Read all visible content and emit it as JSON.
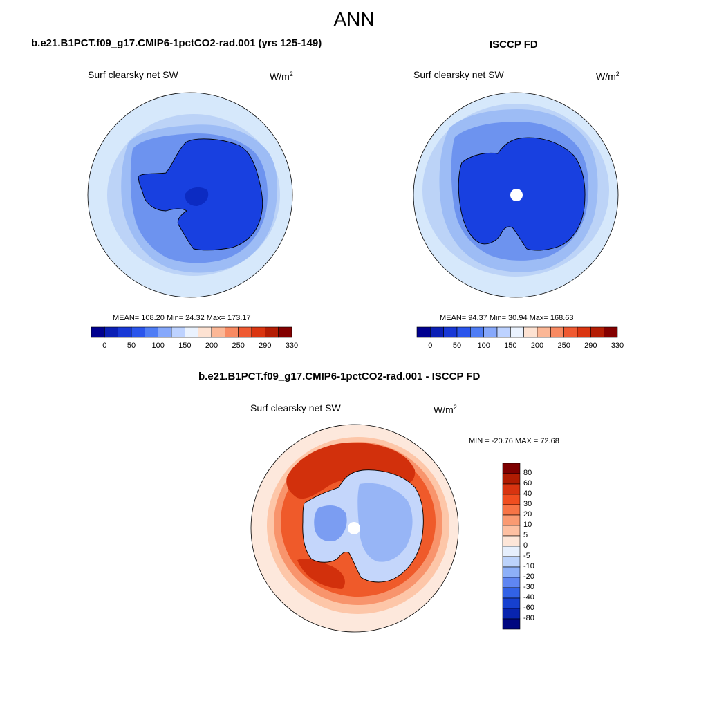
{
  "title": "ANN",
  "panels": [
    {
      "id": "model",
      "case": "b.e21.B1PCT.f09_g17.CMIP6-1pctCO2-rad.001 (yrs 125-149)",
      "variable": "Surf clearsky net SW",
      "units": "W/m",
      "units_sup": "2",
      "stats": "MEAN= 108.20  Min=  24.32  Max= 173.17",
      "mean": 108.2,
      "min": 24.32,
      "max": 173.17
    },
    {
      "id": "obs",
      "case": "ISCCP FD",
      "variable": "Surf clearsky net SW",
      "units": "W/m",
      "units_sup": "2",
      "stats": "MEAN=  94.37  Min=  30.94  Max= 168.63",
      "mean": 94.37,
      "min": 30.94,
      "max": 168.63
    }
  ],
  "abs_colorbar": {
    "tick_labels": [
      "0",
      "50",
      "100",
      "150",
      "200",
      "250",
      "290",
      "330"
    ],
    "colors": [
      "#00008f",
      "#0b1fb5",
      "#1838d6",
      "#2a55ec",
      "#4f7df5",
      "#86a8fb",
      "#bdd2ff",
      "#eaf2fe",
      "#fde2d2",
      "#fbb796",
      "#f88a62",
      "#ef5a32",
      "#da3510",
      "#b41d04",
      "#830000"
    ]
  },
  "diff": {
    "title": "b.e21.B1PCT.f09_g17.CMIP6-1pctCO2-rad.001 - ISCCP FD",
    "variable": "Surf clearsky net SW",
    "units": "W/m",
    "units_sup": "2",
    "stats": "MIN = -20.76 MAX =  72.68",
    "min": -20.76,
    "max": 72.68,
    "colorbar": {
      "tick_labels": [
        "80",
        "60",
        "40",
        "30",
        "20",
        "10",
        "5",
        "0",
        "-5",
        "-10",
        "-20",
        "-30",
        "-40",
        "-60",
        "-80"
      ],
      "colors": [
        "#7e0000",
        "#b01c02",
        "#d83410",
        "#f04e20",
        "#f77446",
        "#fa9a72",
        "#fdc0a2",
        "#fde6d8",
        "#e6effc",
        "#bcd3fb",
        "#8db0f8",
        "#5f86f2",
        "#3262e6",
        "#1640cf",
        "#0824ae",
        "#000780"
      ]
    }
  },
  "map_colors": {
    "ocean_outer": "#d6e8fb",
    "ocean_mid": "#bcd3f7",
    "ice_shelf": "#9dbcf5",
    "coast_band": "#6d93ef",
    "continent": "#1840e0",
    "continent_dark": "#0c2bc2",
    "pole_mask": "#ffffff",
    "diff_red_dark": "#d2300c",
    "diff_red": "#ef5a2a",
    "diff_orange": "#f8946c",
    "diff_peach": "#fdc6a8",
    "diff_cream": "#fde8dc",
    "diff_blue_light": "#c4d6fb",
    "diff_blue": "#97b5f6",
    "diff_blue_mid": "#7b9df2"
  }
}
